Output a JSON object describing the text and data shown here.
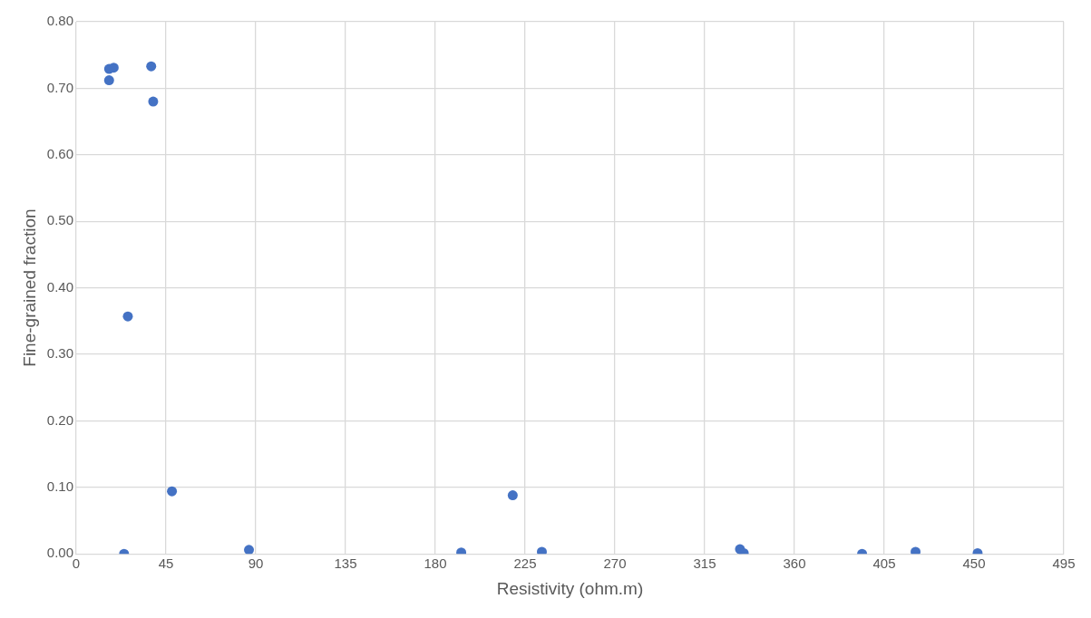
{
  "chart_data": {
    "type": "scatter",
    "xlabel": "Resistivity (ohm.m)",
    "ylabel": "Fine-grained fraction",
    "x": [
      16.5,
      16.5,
      18.8,
      37.6,
      38.6,
      25.9,
      24,
      48,
      86.6,
      193,
      218.8,
      233.4,
      332.7,
      334.6,
      393.9,
      420.7,
      451.8
    ],
    "series": [
      {
        "color": "#4472c4",
        "values": [
          0.712,
          0.729,
          0.731,
          0.733,
          0.68,
          0.357,
          0.0,
          0.094,
          0.006,
          0.002,
          0.088,
          0.003,
          0.007,
          0.001,
          0.0,
          0.003,
          0.001
        ]
      }
    ],
    "xlim": [
      0,
      495
    ],
    "xticks": [
      0,
      45,
      90,
      135,
      180,
      225,
      270,
      315,
      360,
      405,
      450,
      495
    ],
    "ylim": [
      0,
      0.8
    ],
    "yticks": [
      {
        "value": 0,
        "label": "0.00"
      },
      {
        "value": 0.1,
        "label": "0.10"
      },
      {
        "value": 0.2,
        "label": "0.20"
      },
      {
        "value": 0.3,
        "label": "0.30"
      },
      {
        "value": 0.4,
        "label": "0.40"
      },
      {
        "value": 0.5,
        "label": "0.50"
      },
      {
        "value": 0.6,
        "label": "0.60"
      },
      {
        "value": 0.7,
        "label": "0.70"
      },
      {
        "value": 0.8,
        "label": "0.80"
      }
    ],
    "grid": true,
    "marker": "circle",
    "legend": false
  }
}
